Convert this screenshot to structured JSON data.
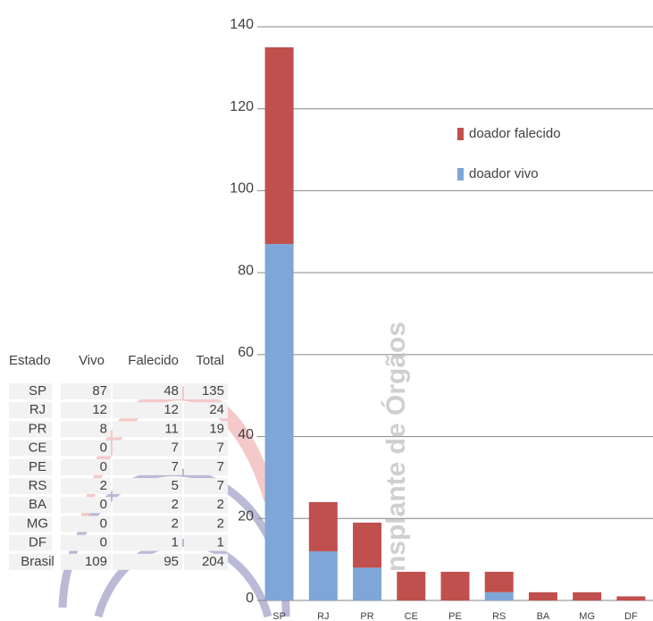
{
  "chart_data": {
    "type": "bar",
    "stacked": true,
    "categories": [
      "SP",
      "RJ",
      "PR",
      "CE",
      "PE",
      "RS",
      "BA",
      "MG",
      "DF"
    ],
    "series": [
      {
        "name": "doador vivo",
        "color": "#7ea6d8",
        "values": [
          87,
          12,
          8,
          0,
          0,
          2,
          0,
          0,
          0
        ]
      },
      {
        "name": "doador falecido",
        "color": "#c0504d",
        "values": [
          48,
          12,
          11,
          7,
          7,
          5,
          2,
          2,
          1
        ]
      }
    ],
    "ylim": [
      0,
      140
    ],
    "yticks": [
      0,
      20,
      40,
      60,
      80,
      100,
      120,
      140
    ],
    "grid": true,
    "watermark": "nsplante de Órgãos"
  },
  "table": {
    "header": [
      "Estado",
      "Vivo",
      "Falecido",
      "Total"
    ],
    "rows": [
      [
        "SP",
        "87",
        "48",
        "135"
      ],
      [
        "RJ",
        "12",
        "12",
        "24"
      ],
      [
        "PR",
        "8",
        "11",
        "19"
      ],
      [
        "CE",
        "0",
        "7",
        "7"
      ],
      [
        "PE",
        "0",
        "7",
        "7"
      ],
      [
        "RS",
        "2",
        "5",
        "7"
      ],
      [
        "BA",
        "0",
        "2",
        "2"
      ],
      [
        "MG",
        "0",
        "2",
        "2"
      ],
      [
        "DF",
        "0",
        "1",
        "1"
      ],
      [
        "Brasil",
        "109",
        "95",
        "204"
      ]
    ]
  }
}
